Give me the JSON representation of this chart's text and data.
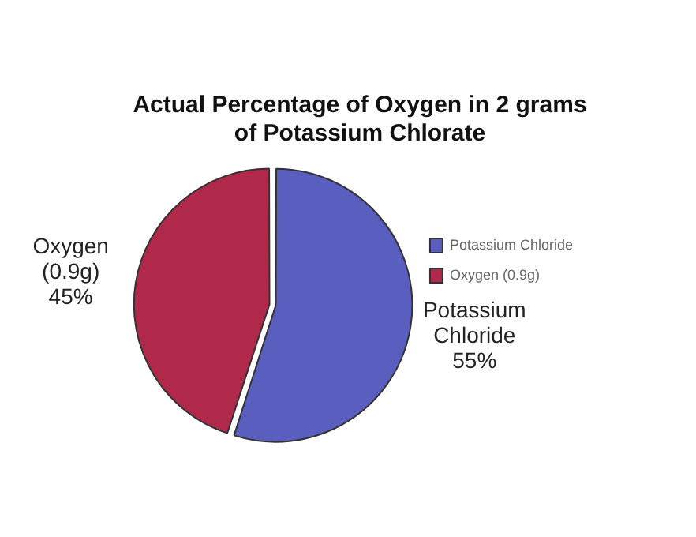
{
  "chart_data": {
    "type": "pie",
    "title": "Actual Percentage of Oxygen in 2 grams of Potassium Chlorate",
    "categories": [
      "Potassium Chloride",
      "Oxygen (0.9g)"
    ],
    "values": [
      55,
      45
    ],
    "colors": [
      "#5a5fbf",
      "#b0284a"
    ],
    "value_labels": [
      "55%",
      "45%"
    ],
    "legend": "right"
  }
}
